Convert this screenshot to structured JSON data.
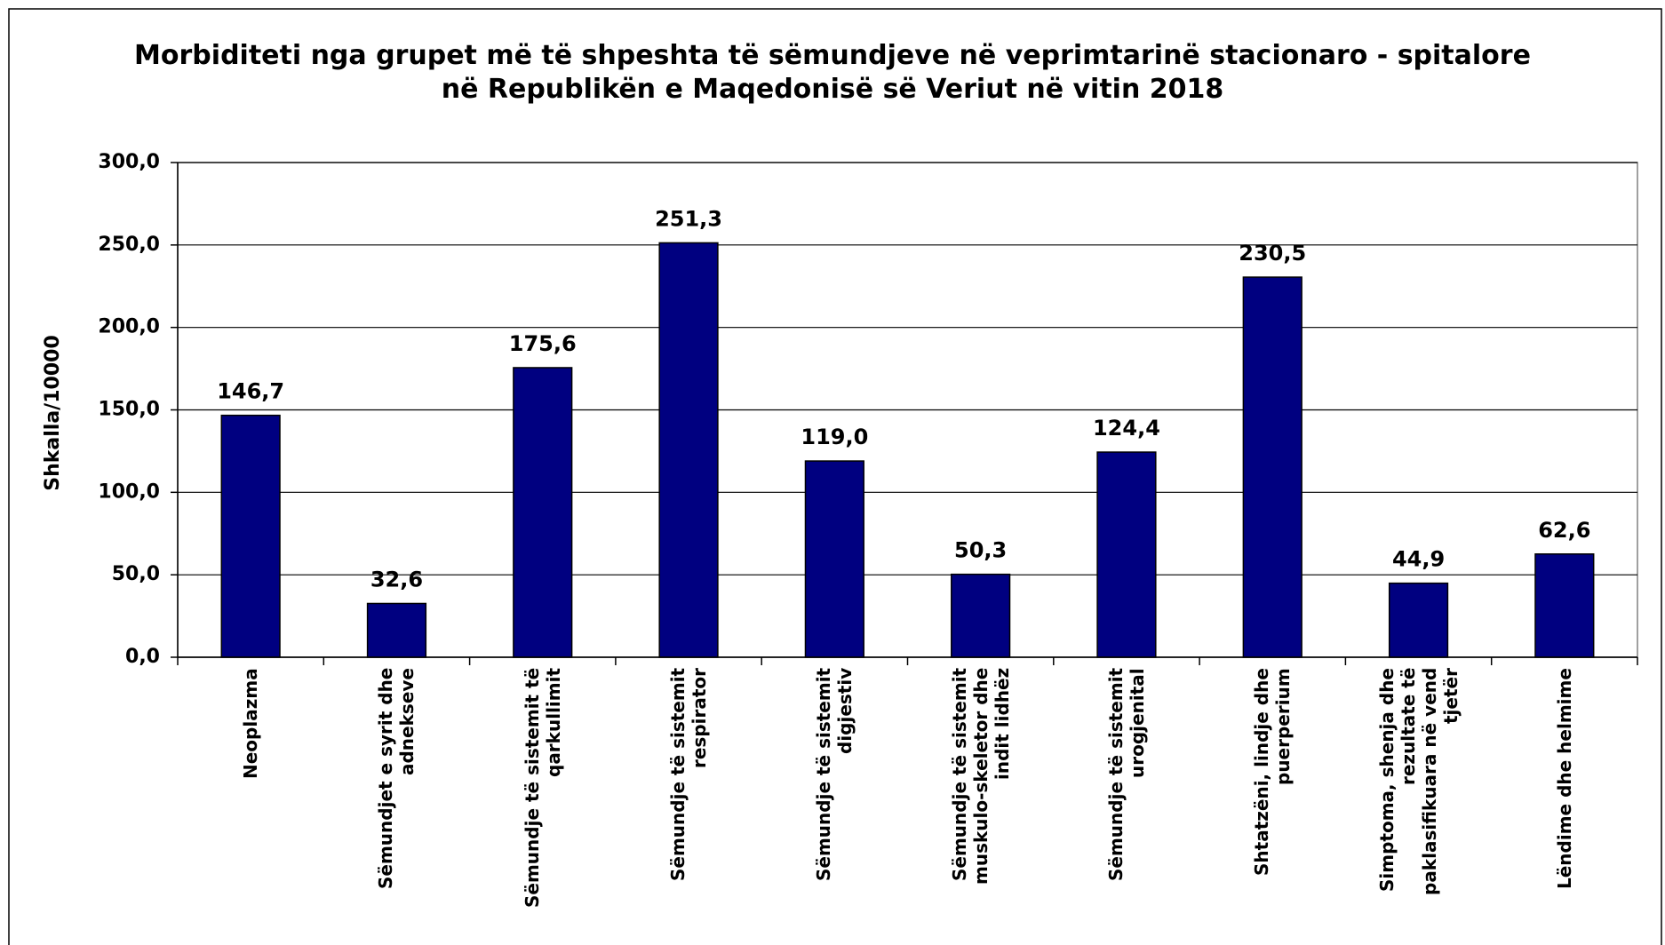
{
  "chart_data": {
    "type": "bar",
    "title": "Morbiditeti nga grupet më të shpeshta të sëmundjeve në veprimtarinë stacionaro - spitalore në Republikën e Maqedonisë së Veriut në vitin 2018",
    "y_label": "Shkalla/10000",
    "categories": [
      "Neoplazma",
      "Sëmundjet e syrit dhe adnekseve",
      "Sëmundje të sistemit të qarkullimit",
      "Sëmundje të sistemit respirator",
      "Sëmundje të sistemit digjestiv",
      "Sëmundje të sistemit muskulo-skeletor dhe indit lidhëz",
      "Sëmundje të sistemit urogjenital",
      "Shtatzëni, lindje dhe puerperium",
      "Simptoma, shenja dhe rezultate të paklasifikuara në vend tjetër",
      "Lëndime dhe helmime"
    ],
    "values": [
      146.7,
      32.6,
      175.6,
      251.3,
      119.0,
      50.3,
      124.4,
      230.5,
      44.9,
      62.6
    ],
    "value_labels": [
      "146,7",
      "32,6",
      "175,6",
      "251,3",
      "119,0",
      "50,3",
      "124,4",
      "230,5",
      "44,9",
      "62,6"
    ],
    "color": "#000080",
    "ylim": [
      0,
      300
    ],
    "yticks": [
      {
        "value": 0,
        "label": "0,0"
      },
      {
        "value": 50,
        "label": "50,0"
      },
      {
        "value": 100,
        "label": "100,0"
      },
      {
        "value": 150,
        "label": "150,0"
      },
      {
        "value": 200,
        "label": "200,0"
      },
      {
        "value": 250,
        "label": "250,0"
      },
      {
        "value": 300,
        "label": "300,0"
      }
    ],
    "grid": true
  }
}
